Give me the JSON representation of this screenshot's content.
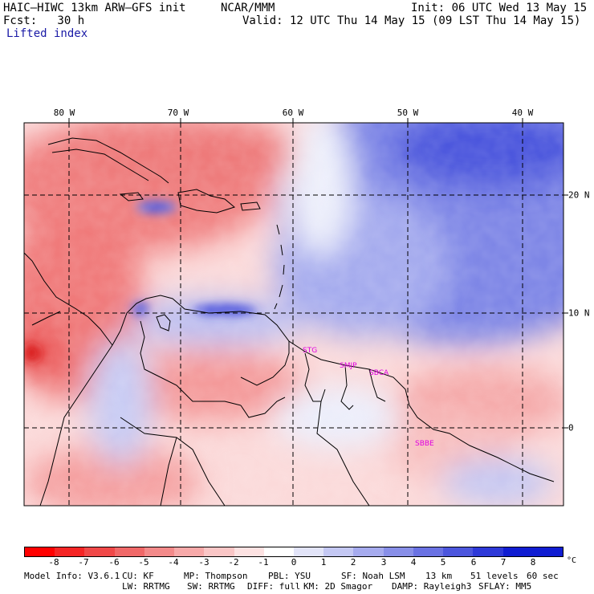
{
  "header": {
    "model": "HAIC–HIWC 13km ARW–GFS init",
    "org": "NCAR/MMM",
    "init": "Init: 06 UTC Wed 13 May 15",
    "fcst": "Fcst:   30 h",
    "valid": "Valid: 12 UTC Thu 14 May 15 (09 LST Thu 14 May 15)",
    "field": "Lifted index"
  },
  "map": {
    "lon_labels": [
      "80 W",
      "70 W",
      "60 W",
      "50 W",
      "40 W"
    ],
    "lat_labels": [
      "20 N",
      "10 N",
      "0"
    ],
    "stations": [
      "STG",
      "SMJP",
      "SBCA",
      "SBBE"
    ],
    "colors": {
      "coastline": "#000000",
      "grid": "#000000",
      "station": "#e000e0"
    }
  },
  "colorbar": {
    "ticks": [
      "-8",
      "-7",
      "-6",
      "-5",
      "-4",
      "-3",
      "-2",
      "-1",
      "0",
      "1",
      "2",
      "3",
      "4",
      "5",
      "6",
      "7",
      "8"
    ],
    "unit": "°C",
    "colors": [
      "#ff0000",
      "#f52525",
      "#f04848",
      "#f06868",
      "#f38a8a",
      "#f7a9a9",
      "#fac6c6",
      "#fde2e2",
      "#ffffff",
      "#e2e4f8",
      "#c4c8f3",
      "#a6abee",
      "#888fe8",
      "#6a72e3",
      "#4c56dd",
      "#2e39d8",
      "#101dd2"
    ]
  },
  "footer": {
    "line1": [
      "Model Info: V3.6.1",
      "CU: KF",
      "MP: Thompson",
      "PBL: YSU",
      "SF: Noah LSM",
      "13 km",
      "51 levels",
      "60 sec"
    ],
    "line2": [
      "LW: RRTMG",
      "SW: RRTMG",
      "DIFF: full",
      "KM: 2D Smagor",
      "DAMP: Rayleigh3",
      "SFLAY: MM5"
    ]
  }
}
